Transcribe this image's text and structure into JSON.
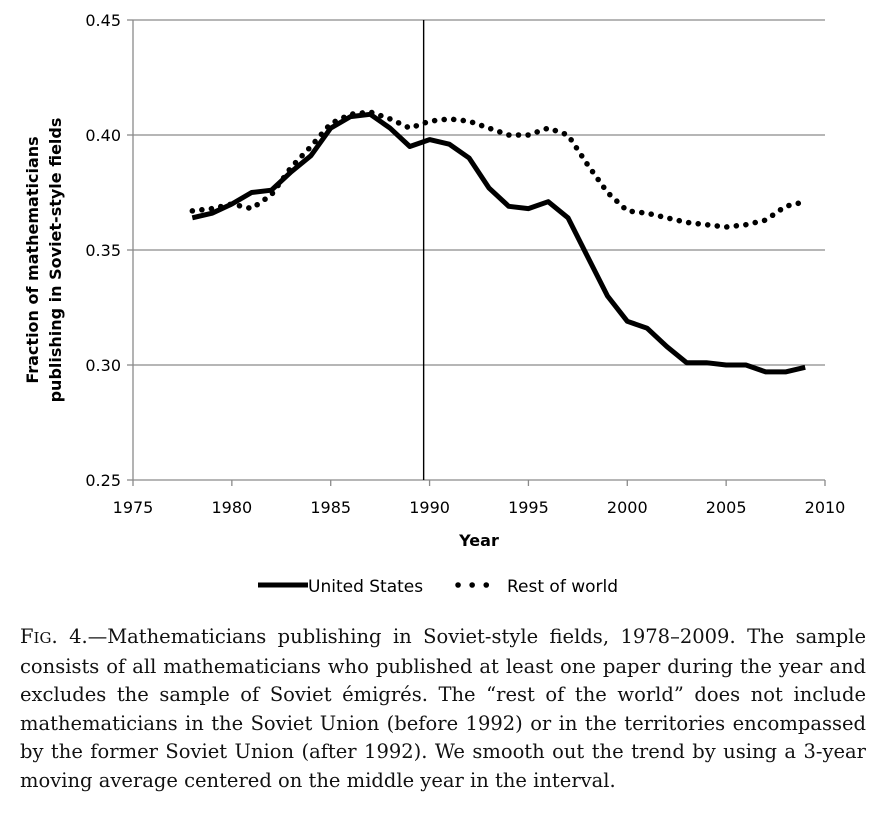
{
  "chart_data": {
    "type": "line",
    "title": "",
    "xlabel": "Year",
    "ylabel_lines": [
      "Fraction of mathematicians",
      "publishing in Soviet-style fields"
    ],
    "xlim": [
      1975,
      2010
    ],
    "ylim": [
      0.25,
      0.45
    ],
    "x_ticks": [
      1975,
      1980,
      1985,
      1990,
      1995,
      2000,
      2005,
      2010
    ],
    "y_ticks": [
      0.25,
      0.3,
      0.35,
      0.4,
      0.45
    ],
    "y_tick_labels": [
      "0.25",
      "0.30",
      "0.35",
      "0.40",
      "0.45"
    ],
    "grid": "horizontal",
    "reference_line_x": 1989.7,
    "legend_position": "bottom",
    "x": [
      1978,
      1979,
      1980,
      1981,
      1982,
      1983,
      1984,
      1985,
      1986,
      1987,
      1988,
      1989,
      1990,
      1991,
      1992,
      1993,
      1994,
      1995,
      1996,
      1997,
      1998,
      1999,
      2000,
      2001,
      2002,
      2003,
      2004,
      2005,
      2006,
      2007,
      2008,
      2009
    ],
    "series": [
      {
        "name": "United States",
        "style": "solid",
        "color": "#000000",
        "values": [
          0.364,
          0.366,
          0.37,
          0.375,
          0.376,
          0.384,
          0.391,
          0.403,
          0.408,
          0.409,
          0.403,
          0.395,
          0.398,
          0.396,
          0.39,
          0.377,
          0.369,
          0.368,
          0.371,
          0.364,
          0.347,
          0.33,
          0.319,
          0.316,
          0.308,
          0.301,
          0.301,
          0.3,
          0.3,
          0.297,
          0.297,
          0.299
        ]
      },
      {
        "name": "Rest of world",
        "style": "dotted",
        "color": "#000000",
        "values": [
          0.367,
          0.368,
          0.37,
          0.368,
          0.374,
          0.386,
          0.395,
          0.405,
          0.409,
          0.41,
          0.407,
          0.403,
          0.406,
          0.407,
          0.406,
          0.403,
          0.4,
          0.4,
          0.403,
          0.4,
          0.387,
          0.375,
          0.367,
          0.366,
          0.364,
          0.362,
          0.361,
          0.36,
          0.361,
          0.363,
          0.369,
          0.371
        ]
      }
    ]
  },
  "caption": {
    "fig_first_letter": "F",
    "fig_rest": "IG",
    "fig_number": ". 4.",
    "text": "—Mathematicians publishing in Soviet-style fields, 1978–2009. The sample consists of all mathematicians who published at least one paper during the year and excludes the sample of Soviet émigrés. The “rest of the world” does not include mathematicians in the Soviet Union (before 1992) or in the territories encompassed by the former Soviet Union (after 1992). We smooth out the trend by using a 3-year moving average centered on the middle year in the interval."
  }
}
